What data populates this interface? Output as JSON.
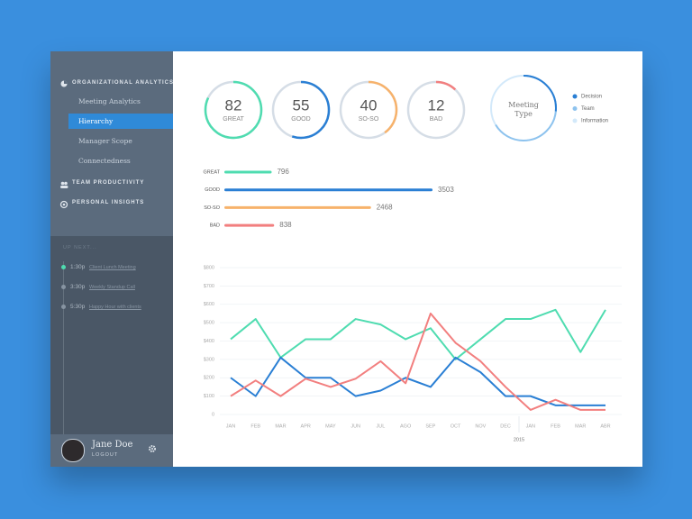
{
  "sidebar": {
    "sections": [
      {
        "label": "ORGANIZATIONAL ANALYTICS",
        "items": [
          "Meeting Analytics",
          "Hierarchy",
          "Manager Scope",
          "Connectedness"
        ]
      },
      {
        "label": "TEAM PRODUCTIVITY"
      },
      {
        "label": "PERSONAL INSIGHTS"
      }
    ],
    "up_next": {
      "title": "UP NEXT...",
      "events": [
        {
          "time": "1:30p",
          "title": "Client Lunch Meeting"
        },
        {
          "time": "3:30p",
          "title": "Weekly Standup Call"
        },
        {
          "time": "5:30p",
          "title": "Happy Hour with clients"
        }
      ]
    },
    "user": {
      "name": "Jane Doe",
      "action": "LOGOUT"
    }
  },
  "gauges": [
    {
      "value": 82,
      "label": "GREAT",
      "color": "#4fdcb0"
    },
    {
      "value": 55,
      "label": "GOOD",
      "color": "#2a7fd4"
    },
    {
      "value": 40,
      "label": "SO-SO",
      "color": "#f7b26b"
    },
    {
      "value": 12,
      "label": "BAD",
      "color": "#f27f7f"
    }
  ],
  "meeting_type": {
    "title": "Meeting Type",
    "legend": [
      {
        "name": "Decision",
        "color": "#2a7fd4"
      },
      {
        "name": "Team",
        "color": "#8ec3ee"
      },
      {
        "name": "Information",
        "color": "#d3e9fa"
      }
    ]
  },
  "totals": {
    "categories": [
      "GREAT",
      "GOOD",
      "SO-SO",
      "BAD"
    ],
    "values": [
      796,
      3503,
      2468,
      838
    ],
    "colors": [
      "#4fdcb0",
      "#2a7fd4",
      "#f7b26b",
      "#f27f7f"
    ]
  },
  "chart_data": {
    "type": "line",
    "categories": [
      "JAN",
      "FEB",
      "MAR",
      "APR",
      "MAY",
      "JUN",
      "JUL",
      "AGO",
      "SEP",
      "OCT",
      "NOV",
      "DEC",
      "JAN",
      "FEB",
      "MAR",
      "ABR"
    ],
    "annotation": "2015",
    "series": [
      {
        "color": "#4fdcb0",
        "values": [
          410,
          520,
          310,
          410,
          410,
          520,
          490,
          410,
          470,
          300,
          410,
          520,
          520,
          570,
          340,
          570
        ]
      },
      {
        "color": "#2a7fd4",
        "values": [
          200,
          100,
          310,
          200,
          200,
          100,
          130,
          200,
          150,
          310,
          230,
          100,
          100,
          50,
          50,
          50
        ]
      },
      {
        "color": "#f27f7f",
        "values": [
          100,
          185,
          100,
          195,
          150,
          195,
          290,
          170,
          550,
          390,
          290,
          150,
          25,
          80,
          25,
          25
        ]
      }
    ],
    "ylim": [
      0,
      800
    ],
    "yticks": [
      0,
      {
        "value": 100,
        "label": "$100"
      },
      {
        "value": 200,
        "label": "$200"
      },
      {
        "value": 300,
        "label": "$300"
      },
      {
        "value": 400,
        "label": "$400"
      },
      {
        "value": 500,
        "label": "$500"
      },
      {
        "value": 600,
        "label": "$600"
      },
      {
        "value": 700,
        "label": "$700"
      },
      {
        "value": 800,
        "label": "$800"
      }
    ],
    "grid": true
  }
}
